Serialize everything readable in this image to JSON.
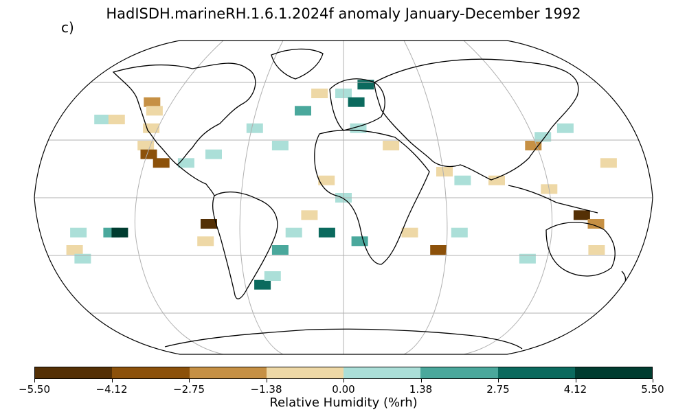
{
  "title": "HadISDH.marineRH.1.6.1.2024f anomaly January-December 1992",
  "panel_label": "c)",
  "colorbar": {
    "label": "Relative Humidity (%rh)",
    "ticks": [
      "−5.50",
      "−4.12",
      "−2.75",
      "−1.38",
      "0.00",
      "1.38",
      "2.75",
      "4.12",
      "5.50"
    ],
    "colors": [
      "#543005",
      "#8c510a",
      "#c69044",
      "#eed8a6",
      "#abdfd8",
      "#4aa89c",
      "#0b6a5e",
      "#003c30"
    ]
  },
  "chart_data": {
    "type": "heatmap",
    "projection": "Robinson",
    "grid": true,
    "color_range": [
      -5.5,
      5.5
    ],
    "bins": [
      -5.5,
      -4.12,
      -2.75,
      -1.38,
      0.0,
      1.38,
      2.75,
      4.12,
      5.5
    ],
    "gridded_anomalies": [
      {
        "lon": -170,
        "lat": 45,
        "value": 0.7
      },
      {
        "lon": -160,
        "lat": 45,
        "value": -0.5
      },
      {
        "lon": -150,
        "lat": 55,
        "value": -2.0
      },
      {
        "lon": -140,
        "lat": 50,
        "value": -0.8
      },
      {
        "lon": -130,
        "lat": 40,
        "value": -1.0
      },
      {
        "lon": -125,
        "lat": 30,
        "value": -0.6
      },
      {
        "lon": -120,
        "lat": 25,
        "value": -3.0
      },
      {
        "lon": -110,
        "lat": 20,
        "value": -2.9
      },
      {
        "lon": -95,
        "lat": 20,
        "value": 0.7
      },
      {
        "lon": -80,
        "lat": 25,
        "value": 0.8
      },
      {
        "lon": -60,
        "lat": 40,
        "value": 0.9
      },
      {
        "lon": -40,
        "lat": 30,
        "value": 0.6
      },
      {
        "lon": -30,
        "lat": 50,
        "value": 1.9
      },
      {
        "lon": -20,
        "lat": 60,
        "value": -1.0
      },
      {
        "lon": 0,
        "lat": 60,
        "value": 0.7
      },
      {
        "lon": 10,
        "lat": 55,
        "value": 3.0
      },
      {
        "lon": 20,
        "lat": 65,
        "value": 2.9
      },
      {
        "lon": 10,
        "lat": 40,
        "value": 0.6
      },
      {
        "lon": 60,
        "lat": 15,
        "value": -0.6
      },
      {
        "lon": 70,
        "lat": 10,
        "value": 0.7
      },
      {
        "lon": 90,
        "lat": 10,
        "value": -0.6
      },
      {
        "lon": 120,
        "lat": 30,
        "value": -2.1
      },
      {
        "lon": 130,
        "lat": 35,
        "value": 0.7
      },
      {
        "lon": 150,
        "lat": 40,
        "value": 0.8
      },
      {
        "lon": 160,
        "lat": 20,
        "value": -0.5
      },
      {
        "lon": 120,
        "lat": 5,
        "value": -1.2
      },
      {
        "lon": 140,
        "lat": -10,
        "value": -4.5
      },
      {
        "lon": 150,
        "lat": -15,
        "value": -1.9
      },
      {
        "lon": 160,
        "lat": -30,
        "value": -0.6
      },
      {
        "lon": 120,
        "lat": -35,
        "value": 1.0
      },
      {
        "lon": 70,
        "lat": -20,
        "value": 0.6
      },
      {
        "lon": 60,
        "lat": -30,
        "value": -2.8
      },
      {
        "lon": 40,
        "lat": -20,
        "value": -1.0
      },
      {
        "lon": 10,
        "lat": -25,
        "value": 2.0
      },
      {
        "lon": -10,
        "lat": -20,
        "value": 3.0
      },
      {
        "lon": -20,
        "lat": -10,
        "value": -0.6
      },
      {
        "lon": -30,
        "lat": -20,
        "value": 0.8
      },
      {
        "lon": -40,
        "lat": -30,
        "value": 2.0
      },
      {
        "lon": -60,
        "lat": -50,
        "value": 3.0
      },
      {
        "lon": -50,
        "lat": -45,
        "value": 1.0
      },
      {
        "lon": -80,
        "lat": -15,
        "value": -4.3
      },
      {
        "lon": -85,
        "lat": -25,
        "value": -0.7
      },
      {
        "lon": -140,
        "lat": -20,
        "value": 2.3
      },
      {
        "lon": -135,
        "lat": -20,
        "value": 5.0
      },
      {
        "lon": -160,
        "lat": -20,
        "value": 0.7
      },
      {
        "lon": -170,
        "lat": -30,
        "value": -0.6
      },
      {
        "lon": -170,
        "lat": -35,
        "value": 0.8
      },
      {
        "lon": 0,
        "lat": 0,
        "value": 0.7
      },
      {
        "lon": -10,
        "lat": 10,
        "value": -0.6
      },
      {
        "lon": 30,
        "lat": 30,
        "value": -0.8
      }
    ]
  }
}
